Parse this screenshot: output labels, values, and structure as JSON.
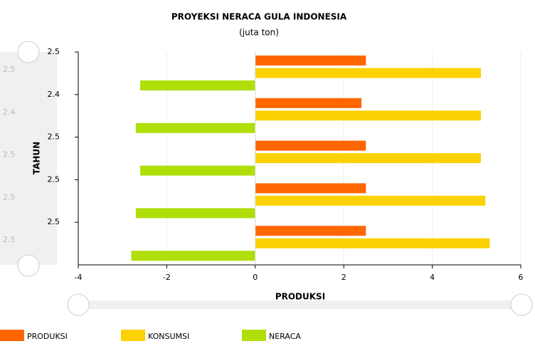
{
  "chart_data": {
    "type": "bar",
    "orientation": "horizontal",
    "title": "PROYEKSI NERACA GULA INDONESIA",
    "subtitle": "(juta ton)",
    "x_label": "PRODUKSI",
    "y_label": "TAHUN",
    "categories": [
      "2.5",
      "2.4",
      "2.5",
      "2.5",
      "2.5"
    ],
    "series": [
      {
        "name": "PRODUKSI",
        "color": "#ff6600",
        "values": [
          2.5,
          2.4,
          2.5,
          2.5,
          2.5
        ]
      },
      {
        "name": "KONSUMSI",
        "color": "#fcd202",
        "values": [
          5.1,
          5.1,
          5.1,
          5.2,
          5.3
        ]
      },
      {
        "name": "NERACA",
        "color": "#b0de09",
        "values": [
          -2.6,
          -2.7,
          -2.6,
          -2.7,
          -2.8
        ]
      }
    ],
    "xlim": [
      -4,
      6
    ],
    "xticks": [
      -4,
      -2,
      0,
      2,
      4,
      6
    ],
    "grid": true,
    "legend": "bottom"
  }
}
